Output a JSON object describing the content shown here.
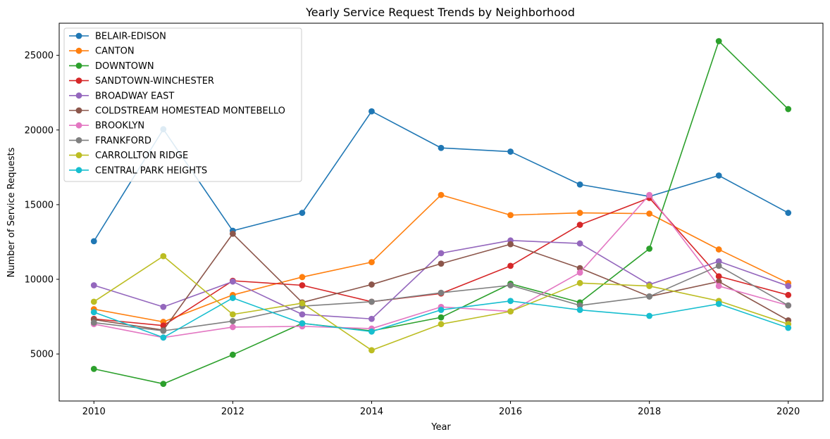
{
  "chart_data": {
    "type": "line",
    "title": "Yearly Service Request Trends by Neighborhood",
    "xlabel": "Year",
    "ylabel": "Number of Service Requests",
    "x": [
      2010,
      2011,
      2012,
      2013,
      2014,
      2015,
      2016,
      2017,
      2018,
      2019,
      2020
    ],
    "x_ticks": [
      2010,
      2012,
      2014,
      2016,
      2018,
      2020
    ],
    "y_ticks": [
      5000,
      10000,
      15000,
      20000,
      25000
    ],
    "xlim": [
      2009.5,
      2020.5
    ],
    "ylim": [
      1850,
      27150
    ],
    "grid": false,
    "legend_position": "top-left",
    "series": [
      {
        "name": "BELAIR-EDISON",
        "color": "#1f77b4",
        "values": [
          12550,
          20050,
          13250,
          14450,
          21250,
          18800,
          18550,
          16350,
          15550,
          16950,
          14450
        ]
      },
      {
        "name": "CANTON",
        "color": "#ff7f0e",
        "values": [
          8000,
          7150,
          8950,
          10150,
          11150,
          15650,
          14300,
          14450,
          14400,
          12000,
          9750
        ]
      },
      {
        "name": "DOWNTOWN",
        "color": "#2ca02c",
        "values": [
          4000,
          3000,
          4950,
          7050,
          6550,
          7450,
          9700,
          8450,
          12050,
          25950,
          21400
        ]
      },
      {
        "name": "SANDTOWN-WINCHESTER",
        "color": "#d62728",
        "values": [
          7350,
          6900,
          9900,
          9600,
          8500,
          9050,
          10900,
          13650,
          15450,
          10200,
          8950
        ]
      },
      {
        "name": "BROADWAY EAST",
        "color": "#9467bd",
        "values": [
          9600,
          8150,
          9850,
          7650,
          7350,
          11750,
          12600,
          12400,
          9650,
          11200,
          9550
        ]
      },
      {
        "name": "COLDSTREAM HOMESTEAD MONTEBELLO",
        "color": "#8c564b",
        "values": [
          7300,
          6600,
          13050,
          8450,
          9650,
          11050,
          12350,
          10750,
          8850,
          9850,
          7250
        ]
      },
      {
        "name": "BROOKLYN",
        "color": "#e377c2",
        "values": [
          7000,
          6100,
          6800,
          6850,
          6700,
          8150,
          7850,
          10450,
          15650,
          9550,
          8250
        ]
      },
      {
        "name": "FRANKFORD",
        "color": "#7f7f7f",
        "values": [
          7100,
          6550,
          7200,
          8200,
          8500,
          9100,
          9600,
          8250,
          8850,
          10900,
          8250
        ]
      },
      {
        "name": "CARROLLTON RIDGE",
        "color": "#bcbd22",
        "values": [
          8500,
          11550,
          7650,
          8400,
          5250,
          7000,
          7850,
          9750,
          9550,
          8550,
          7000
        ]
      },
      {
        "name": "CENTRAL PARK HEIGHTS",
        "color": "#17becf",
        "values": [
          7800,
          6100,
          8750,
          7050,
          6500,
          7950,
          8550,
          7950,
          7550,
          8350,
          6750
        ]
      }
    ]
  }
}
